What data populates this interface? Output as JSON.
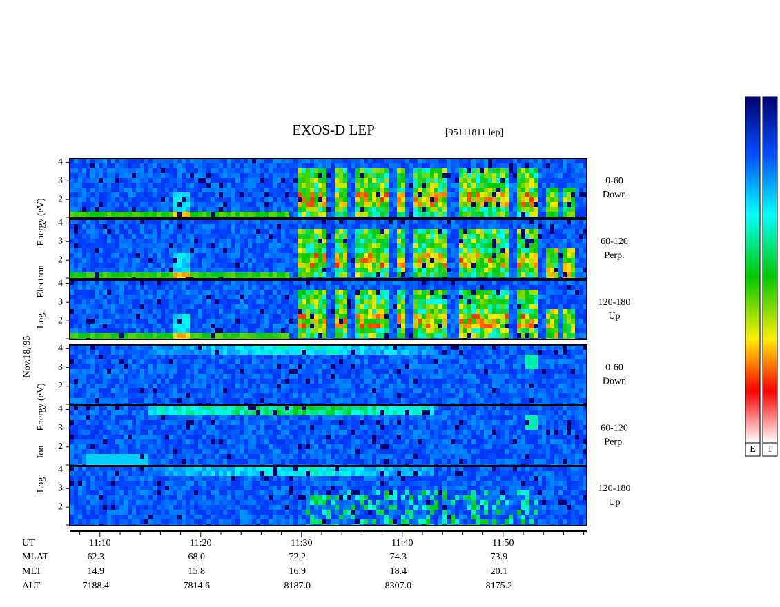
{
  "title": "EXOS-D LEP",
  "file_label": "[95111811.lep]",
  "date_label": "Nov.18,'95",
  "electron_label": [
    "Log",
    "Electron",
    "Energy (eV)"
  ],
  "ion_label": [
    "Log",
    "Ion",
    "Energy (eV)"
  ],
  "pitch_angles": [
    {
      "range": "0-60",
      "direction": "Down"
    },
    {
      "range": "60-120",
      "direction": "Perp."
    },
    {
      "range": "120-180",
      "direction": "Up"
    }
  ],
  "energy_axis": {
    "ylim": [
      1,
      4.2
    ],
    "yticks": [
      2,
      3,
      4
    ]
  },
  "time_axis": {
    "xlim": [
      667,
      718.3
    ],
    "xticks": [
      {
        "value": 670,
        "label": "11:10"
      },
      {
        "value": 680,
        "label": "11:20"
      },
      {
        "value": 690,
        "label": "11:30"
      },
      {
        "value": 700,
        "label": "11:40"
      },
      {
        "value": 710,
        "label": "11:50"
      }
    ],
    "minor_ticks": [
      668,
      672,
      674,
      676,
      678,
      682,
      684,
      686,
      688,
      692,
      694,
      696,
      698,
      702,
      704,
      706,
      708,
      712,
      714,
      716,
      718
    ]
  },
  "ut_label": "UT",
  "ephemeris": [
    {
      "label": "MLAT",
      "values": [
        "62.3",
        "68.0",
        "72.2",
        "74.3",
        "73.9"
      ]
    },
    {
      "label": "MLT",
      "values": [
        "14.9",
        "15.8",
        "16.9",
        "18.4",
        "20.1"
      ]
    },
    {
      "label": "ALT",
      "values": [
        "7188.4",
        "7814.6",
        "8187.0",
        "8307.0",
        "8175.2"
      ]
    }
  ],
  "colorbar_labels": [
    "E",
    "I"
  ]
}
